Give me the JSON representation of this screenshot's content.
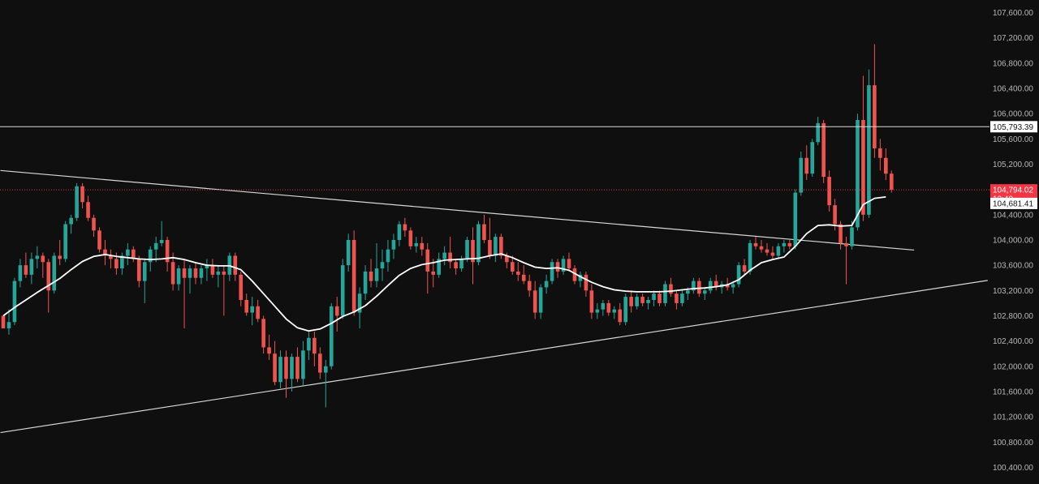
{
  "chart_data": {
    "type": "candlestick",
    "title": "",
    "xlabel": "",
    "ylabel": "",
    "ylim": [
      100200,
      107800
    ],
    "grid": false,
    "y_ticks": [
      "107,600.00",
      "107,200.00",
      "106,800.00",
      "106,400.00",
      "106,000.00",
      "105,600.00",
      "105,200.00",
      "104,800.00",
      "104,400.00",
      "104,000.00",
      "103,600.00",
      "103,200.00",
      "102,800.00",
      "102,400.00",
      "102,000.00",
      "101,600.00",
      "101,200.00",
      "100,800.00",
      "100,400.00"
    ],
    "y_tick_values": [
      107600,
      107200,
      106800,
      106400,
      106000,
      105600,
      105200,
      104800,
      104400,
      104000,
      103600,
      103200,
      102800,
      102400,
      102000,
      101600,
      101200,
      100800,
      100400
    ],
    "colors": {
      "background": "#0f0f0f",
      "up": "#26a69a",
      "down": "#ef5350",
      "ma": "#ffffff",
      "trendline": "#d8d8d8",
      "last_price": "#f23645"
    },
    "horizontal_level": {
      "value": 105793.39,
      "label": "105,793.39"
    },
    "last_price": {
      "value": 104794.02,
      "label": "104,794.02",
      "countdown": "10:49"
    },
    "ma_last": {
      "value": 104681.41,
      "label": "104,681.41"
    },
    "trendlines": [
      {
        "name": "upper-descending",
        "start": {
          "bar": -0.5,
          "value": 105100
        },
        "end": {
          "bar": 161,
          "value": 103840
        }
      },
      {
        "name": "lower-ascending",
        "start": {
          "bar": -0.5,
          "value": 100950
        },
        "end": {
          "bar": 174,
          "value": 103360
        }
      }
    ],
    "candles": [
      [
        102800,
        102800,
        102600,
        102600
      ],
      [
        102600,
        102900,
        102500,
        102700
      ],
      [
        102700,
        103400,
        102650,
        103350
      ],
      [
        103350,
        103700,
        103250,
        103600
      ],
      [
        103600,
        103800,
        103400,
        103450
      ],
      [
        103450,
        103800,
        103300,
        103700
      ],
      [
        103700,
        103900,
        103550,
        103750
      ],
      [
        103750,
        103800,
        103400,
        103650
      ],
      [
        103650,
        103700,
        102850,
        103200
      ],
      [
        103200,
        103800,
        103150,
        103750
      ],
      [
        103750,
        104000,
        103600,
        103700
      ],
      [
        103700,
        104300,
        103650,
        104250
      ],
      [
        104250,
        104400,
        104100,
        104350
      ],
      [
        104350,
        104900,
        104300,
        104850
      ],
      [
        104850,
        104900,
        104500,
        104600
      ],
      [
        104600,
        104700,
        104300,
        104350
      ],
      [
        104350,
        104400,
        104050,
        104150
      ],
      [
        104150,
        104200,
        103800,
        103850
      ],
      [
        103850,
        104000,
        103600,
        103750
      ],
      [
        103750,
        103850,
        103550,
        103700
      ],
      [
        103700,
        103800,
        103450,
        103550
      ],
      [
        103550,
        103800,
        103450,
        103750
      ],
      [
        103750,
        103950,
        103600,
        103850
      ],
      [
        103850,
        103900,
        103650,
        103700
      ],
      [
        103700,
        103750,
        103250,
        103350
      ],
      [
        103350,
        103700,
        103000,
        103650
      ],
      [
        103650,
        103900,
        103500,
        103850
      ],
      [
        103850,
        104050,
        103650,
        103950
      ],
      [
        103950,
        104300,
        103900,
        104000
      ],
      [
        104000,
        104050,
        103500,
        103650
      ],
      [
        103650,
        103800,
        103200,
        103300
      ],
      [
        103300,
        103600,
        103200,
        103550
      ],
      [
        103550,
        103700,
        102600,
        103400
      ],
      [
        103400,
        103600,
        103150,
        103550
      ],
      [
        103550,
        103650,
        103300,
        103400
      ],
      [
        103400,
        103600,
        103300,
        103550
      ],
      [
        103550,
        103700,
        103350,
        103600
      ],
      [
        103600,
        103700,
        103400,
        103450
      ],
      [
        103450,
        103600,
        103250,
        103500
      ],
      [
        103500,
        103600,
        102800,
        103450
      ],
      [
        103450,
        103800,
        103350,
        103750
      ],
      [
        103750,
        103800,
        103350,
        103450
      ],
      [
        103450,
        103500,
        102950,
        103050
      ],
      [
        103050,
        103150,
        102800,
        102850
      ],
      [
        102850,
        103100,
        102650,
        102950
      ],
      [
        102950,
        103050,
        102700,
        102750
      ],
      [
        102750,
        102800,
        102200,
        102300
      ],
      [
        102300,
        102500,
        102100,
        102200
      ],
      [
        102200,
        102400,
        101700,
        101750
      ],
      [
        101750,
        102250,
        101650,
        102150
      ],
      [
        102150,
        102250,
        101500,
        101800
      ],
      [
        101800,
        102200,
        101600,
        102150
      ],
      [
        102150,
        102300,
        101750,
        101800
      ],
      [
        101800,
        102400,
        101700,
        102250
      ],
      [
        102250,
        102550,
        102100,
        102450
      ],
      [
        102450,
        102550,
        102000,
        102200
      ],
      [
        102200,
        102300,
        101800,
        101900
      ],
      [
        101900,
        102100,
        101350,
        102000
      ],
      [
        102000,
        103000,
        101950,
        102950
      ],
      [
        102950,
        103100,
        102550,
        102800
      ],
      [
        102800,
        103700,
        102750,
        103600
      ],
      [
        103600,
        104100,
        103500,
        104000
      ],
      [
        104000,
        104150,
        102800,
        102850
      ],
      [
        102850,
        103250,
        102600,
        103150
      ],
      [
        103150,
        103600,
        103050,
        103500
      ],
      [
        103500,
        103700,
        103250,
        103350
      ],
      [
        103350,
        103950,
        103250,
        103550
      ],
      [
        103550,
        103850,
        103350,
        103650
      ],
      [
        103650,
        104000,
        103500,
        103850
      ],
      [
        103850,
        104100,
        103700,
        104000
      ],
      [
        104000,
        104300,
        103900,
        104250
      ],
      [
        104250,
        104350,
        104050,
        104150
      ],
      [
        104150,
        104200,
        103850,
        103900
      ],
      [
        103900,
        104050,
        103800,
        103950
      ],
      [
        103950,
        104050,
        103750,
        103850
      ],
      [
        103850,
        103950,
        103150,
        103500
      ],
      [
        103500,
        103700,
        103250,
        103450
      ],
      [
        103450,
        103800,
        103400,
        103700
      ],
      [
        103700,
        103900,
        103600,
        103800
      ],
      [
        103800,
        104050,
        103550,
        103650
      ],
      [
        103650,
        103700,
        103450,
        103550
      ],
      [
        103550,
        103750,
        103500,
        103700
      ],
      [
        103700,
        104050,
        103650,
        104000
      ],
      [
        104000,
        104200,
        103300,
        103650
      ],
      [
        103650,
        104300,
        103600,
        104250
      ],
      [
        104250,
        104400,
        103950,
        104000
      ],
      [
        104000,
        104350,
        103700,
        103750
      ],
      [
        103750,
        104100,
        103650,
        104050
      ],
      [
        104050,
        104100,
        103700,
        103750
      ],
      [
        103750,
        103800,
        103550,
        103650
      ],
      [
        103650,
        103750,
        103450,
        103500
      ],
      [
        103500,
        103650,
        103350,
        103450
      ],
      [
        103450,
        103600,
        103300,
        103350
      ],
      [
        103350,
        103450,
        103100,
        103200
      ],
      [
        103200,
        103350,
        102750,
        102850
      ],
      [
        102850,
        103300,
        102750,
        103250
      ],
      [
        103250,
        103450,
        103150,
        103350
      ],
      [
        103350,
        103700,
        103300,
        103650
      ],
      [
        103650,
        103700,
        103400,
        103500
      ],
      [
        103500,
        103750,
        103450,
        103700
      ],
      [
        103700,
        103800,
        103500,
        103550
      ],
      [
        103550,
        103600,
        103300,
        103350
      ],
      [
        103350,
        103500,
        103250,
        103450
      ],
      [
        103450,
        103500,
        103100,
        103200
      ],
      [
        103200,
        103300,
        102750,
        102850
      ],
      [
        102850,
        103000,
        102750,
        102900
      ],
      [
        102900,
        103050,
        102800,
        103000
      ],
      [
        103000,
        103050,
        102800,
        102850
      ],
      [
        102850,
        102950,
        102750,
        102900
      ],
      [
        102900,
        103000,
        102650,
        102700
      ],
      [
        102700,
        103150,
        102650,
        103100
      ],
      [
        103100,
        103200,
        102850,
        102950
      ],
      [
        102950,
        103150,
        102900,
        103100
      ],
      [
        103100,
        103150,
        102950,
        103000
      ],
      [
        103000,
        103100,
        102900,
        103050
      ],
      [
        103050,
        103200,
        102950,
        103150
      ],
      [
        103150,
        103200,
        102950,
        103000
      ],
      [
        103000,
        103350,
        102950,
        103300
      ],
      [
        103300,
        103400,
        103100,
        103150
      ],
      [
        103150,
        103200,
        102900,
        103000
      ],
      [
        103000,
        103200,
        102950,
        103150
      ],
      [
        103150,
        103250,
        103050,
        103200
      ],
      [
        103200,
        103400,
        103150,
        103350
      ],
      [
        103350,
        103400,
        103100,
        103150
      ],
      [
        103150,
        103250,
        103050,
        103200
      ],
      [
        103200,
        103400,
        103150,
        103350
      ],
      [
        103350,
        103450,
        103200,
        103250
      ],
      [
        103250,
        103350,
        103150,
        103300
      ],
      [
        103300,
        103400,
        103200,
        103250
      ],
      [
        103250,
        103350,
        103150,
        103300
      ],
      [
        103300,
        103650,
        103250,
        103600
      ],
      [
        103600,
        103700,
        103450,
        103500
      ],
      [
        103500,
        104000,
        103450,
        103950
      ],
      [
        103950,
        104050,
        103850,
        103900
      ],
      [
        103900,
        104000,
        103800,
        103850
      ],
      [
        103850,
        103950,
        103750,
        103800
      ],
      [
        103800,
        103900,
        103700,
        103750
      ],
      [
        103750,
        103950,
        103700,
        103900
      ],
      [
        103900,
        104000,
        103800,
        103950
      ],
      [
        103950,
        104000,
        103850,
        103900
      ],
      [
        103900,
        104800,
        103850,
        104750
      ],
      [
        104750,
        105400,
        104700,
        105300
      ],
      [
        105300,
        105500,
        104950,
        105050
      ],
      [
        105050,
        105600,
        105000,
        105550
      ],
      [
        105550,
        105950,
        105500,
        105850
      ],
      [
        105850,
        105900,
        104900,
        105000
      ],
      [
        105000,
        105100,
        104450,
        104550
      ],
      [
        104550,
        104650,
        104150,
        104250
      ],
      [
        104250,
        104300,
        103850,
        103950
      ],
      [
        103950,
        104050,
        103300,
        103900
      ],
      [
        103900,
        104300,
        103850,
        104200
      ],
      [
        104200,
        106000,
        104150,
        105900
      ],
      [
        105900,
        106600,
        104300,
        104400
      ],
      [
        104400,
        106700,
        104350,
        106450
      ],
      [
        106450,
        107100,
        105300,
        105450
      ],
      [
        105450,
        105600,
        105100,
        105300
      ],
      [
        105300,
        105450,
        104950,
        105050
      ],
      [
        105050,
        105100,
        104750,
        104794.02
      ]
    ],
    "ma": [
      [
        0,
        102800
      ],
      [
        2,
        102930
      ],
      [
        4,
        103050
      ],
      [
        6,
        103170
      ],
      [
        8,
        103280
      ],
      [
        10,
        103390
      ],
      [
        12,
        103530
      ],
      [
        14,
        103660
      ],
      [
        16,
        103740
      ],
      [
        18,
        103770
      ],
      [
        20,
        103740
      ],
      [
        22,
        103720
      ],
      [
        24,
        103700
      ],
      [
        26,
        103690
      ],
      [
        28,
        103700
      ],
      [
        30,
        103720
      ],
      [
        32,
        103690
      ],
      [
        34,
        103640
      ],
      [
        36,
        103600
      ],
      [
        38,
        103590
      ],
      [
        40,
        103590
      ],
      [
        42,
        103530
      ],
      [
        44,
        103350
      ],
      [
        46,
        103150
      ],
      [
        48,
        102950
      ],
      [
        50,
        102750
      ],
      [
        52,
        102610
      ],
      [
        54,
        102560
      ],
      [
        56,
        102590
      ],
      [
        58,
        102680
      ],
      [
        60,
        102790
      ],
      [
        62,
        102860
      ],
      [
        64,
        102960
      ],
      [
        66,
        103110
      ],
      [
        68,
        103280
      ],
      [
        70,
        103440
      ],
      [
        72,
        103550
      ],
      [
        74,
        103610
      ],
      [
        76,
        103640
      ],
      [
        78,
        103680
      ],
      [
        80,
        103690
      ],
      [
        82,
        103700
      ],
      [
        84,
        103710
      ],
      [
        86,
        103750
      ],
      [
        88,
        103780
      ],
      [
        90,
        103720
      ],
      [
        92,
        103640
      ],
      [
        94,
        103570
      ],
      [
        96,
        103550
      ],
      [
        98,
        103560
      ],
      [
        100,
        103520
      ],
      [
        102,
        103420
      ],
      [
        104,
        103330
      ],
      [
        106,
        103260
      ],
      [
        108,
        103210
      ],
      [
        110,
        103190
      ],
      [
        112,
        103180
      ],
      [
        114,
        103180
      ],
      [
        116,
        103180
      ],
      [
        118,
        103190
      ],
      [
        120,
        103210
      ],
      [
        122,
        103230
      ],
      [
        124,
        103240
      ],
      [
        126,
        103260
      ],
      [
        128,
        103290
      ],
      [
        130,
        103370
      ],
      [
        132,
        103520
      ],
      [
        134,
        103640
      ],
      [
        136,
        103690
      ],
      [
        138,
        103730
      ],
      [
        140,
        103900
      ],
      [
        142,
        104100
      ],
      [
        144,
        104230
      ],
      [
        146,
        104240
      ],
      [
        148,
        104220
      ],
      [
        150,
        104230
      ],
      [
        152,
        104560
      ],
      [
        154,
        104660
      ],
      [
        156,
        104681.41
      ]
    ]
  }
}
